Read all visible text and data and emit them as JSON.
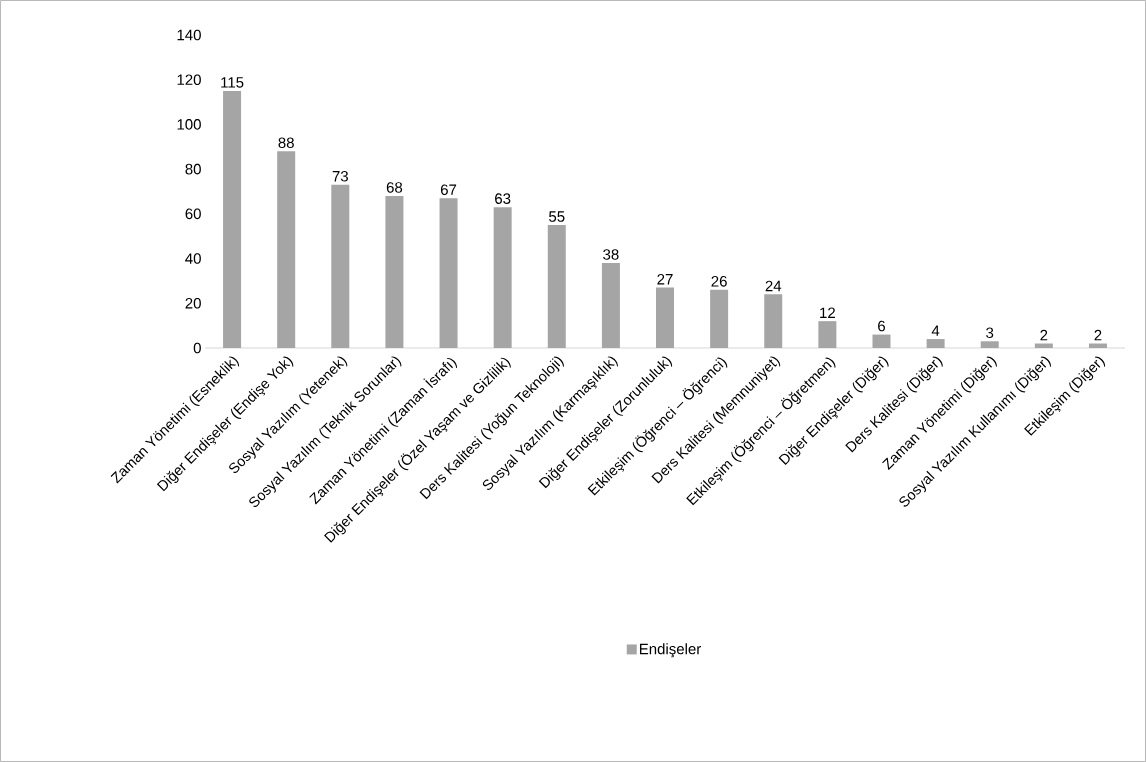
{
  "chart_data": {
    "type": "bar",
    "categories": [
      "Zaman Yönetimi (Esneklik)",
      "Diğer Endişeler (Endişe Yok)",
      "Sosyal Yazılım (Yetenek)",
      "Sosyal Yazılım (Teknik Sorunlar)",
      "Zaman Yönetimi (Zaman İsrafı)",
      "Diğer Endişeler (Özel Yaşam ve Gizlilik)",
      "Ders Kalitesi (Yoğun Teknoloji)",
      "Sosyal Yazılım (Karmaşıklık)",
      "Diğer Endişeler (Zorunluluk)",
      "Etkileşim (Öğrenci – Öğrenci)",
      "Ders Kalitesi (Memnuniyet)",
      "Etkileşim (Öğrenci – Öğretmen)",
      "Diğer Endişeler (Diğer)",
      "Ders Kalitesi (Diğer)",
      "Zaman Yönetimi (Diğer)",
      "Sosyal Yazılım Kullanımı (Diğer)",
      "Etkileşim (Diğer)"
    ],
    "series": [
      {
        "name": "Endişeler",
        "color": "#a5a5a5",
        "values": [
          115,
          88,
          73,
          68,
          67,
          63,
          55,
          38,
          27,
          26,
          24,
          12,
          6,
          4,
          3,
          2,
          2
        ]
      }
    ],
    "ylim": [
      0,
      140
    ],
    "yticks": [
      0,
      20,
      40,
      60,
      80,
      100,
      120,
      140
    ],
    "data_labels": true,
    "legend": "bottom",
    "grid": false
  }
}
